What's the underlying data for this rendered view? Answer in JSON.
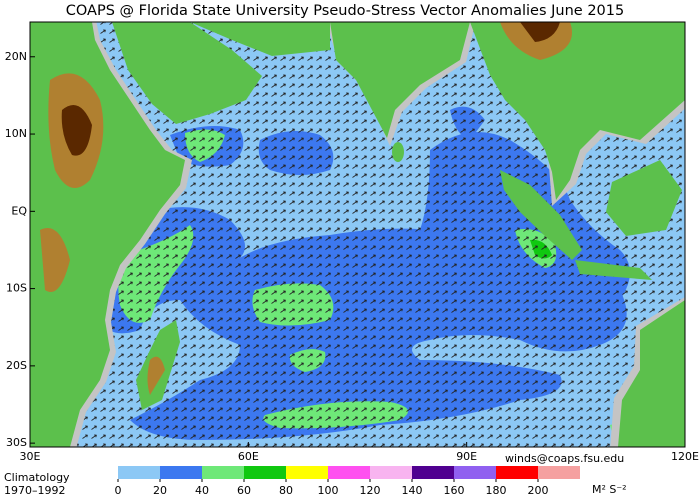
{
  "title": "COAPS @ Florida State University Pseudo-Stress Vector Anomalies  June 2015",
  "map": {
    "lonlim": [
      30,
      120
    ],
    "latlim": [
      -30.5,
      24.5
    ],
    "lat_ticks": [
      {
        "value": 20,
        "label": "20N"
      },
      {
        "value": 10,
        "label": "10N"
      },
      {
        "value": 0,
        "label": "EQ"
      },
      {
        "value": -10,
        "label": "10S"
      },
      {
        "value": -20,
        "label": "20S"
      },
      {
        "value": -30,
        "label": "30S"
      }
    ],
    "lon_ticks": [
      {
        "value": 30,
        "label": "30E"
      },
      {
        "value": 60,
        "label": "60E"
      },
      {
        "value": 90,
        "label": "90E"
      },
      {
        "value": 120,
        "label": "120E"
      }
    ]
  },
  "contact": "winds@coaps.fsu.edu",
  "climatology": [
    "Climatology",
    "1970–1992"
  ],
  "colorbar": {
    "lim": [
      0,
      220
    ],
    "ticks": [
      0,
      20,
      40,
      60,
      80,
      100,
      120,
      140,
      160,
      180,
      200
    ],
    "colors": [
      "#8cc8f5",
      "#3c78f0",
      "#6ee878",
      "#10c810",
      "#ffff00",
      "#ff50f0",
      "#f8b4f0",
      "#500090",
      "#9060f0",
      "#ff0000",
      "#f5a0a0"
    ],
    "units": "M² S⁻²"
  }
}
